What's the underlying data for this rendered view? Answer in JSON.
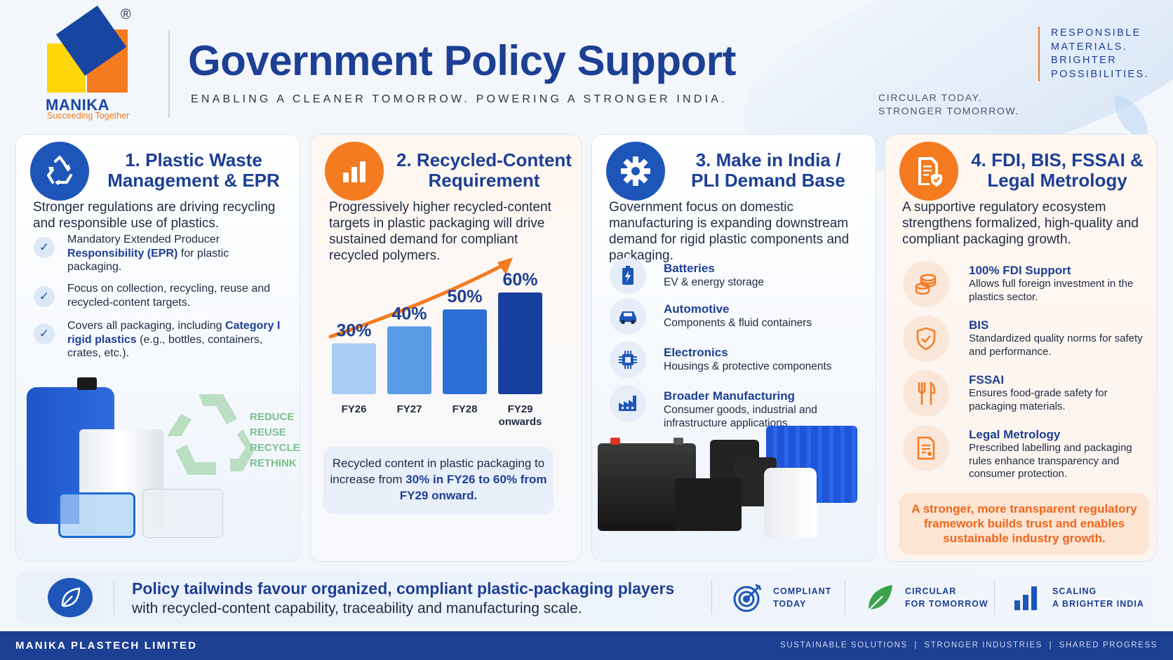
{
  "brand": {
    "name": "MANIKA",
    "tagline": "Succeeding Together",
    "registered": "®"
  },
  "header": {
    "title": "Government Policy Support",
    "subtitle": "ENABLING A CLEANER TOMORROW. POWERING A STRONGER INDIA.",
    "tagline_lines": [
      "RESPONSIBLE",
      "MATERIALS.",
      "BRIGHTER",
      "POSSIBILITIES."
    ],
    "sub_tagline_lines": [
      "CIRCULAR TODAY.",
      "STRONGER TOMORROW."
    ]
  },
  "card1": {
    "icon": "recycle-icon",
    "title_lines": [
      "1. Plastic Waste",
      "Management & EPR"
    ],
    "description": "Stronger regulations are driving recycling and responsible use of plastics.",
    "bullets": [
      {
        "pre": "Mandatory Extended Producer ",
        "bold": "Responsibility (EPR)",
        "post": " for plastic packaging."
      },
      {
        "pre": "Focus on collection, recycling, reuse and recycled-content targets.",
        "bold": "",
        "post": ""
      },
      {
        "pre": "Covers all packaging, including ",
        "bold": "Category I rigid plastics",
        "post": " (e.g., bottles, containers, crates, etc.)."
      }
    ],
    "recycle_words": [
      "REDUCE",
      "REUSE",
      "RECYCLE",
      "RETHINK"
    ]
  },
  "card2": {
    "icon": "bar-chart-icon",
    "title_lines": [
      "2. Recycled-Content",
      "Requirement"
    ],
    "description": "Progressively higher recycled-content targets in plastic packaging will drive sustained demand for compliant recycled polymers.",
    "callout": {
      "pre": "Recycled content in plastic packaging to increase from ",
      "bold": "30% in FY26 to 60% from FY29 onward."
    }
  },
  "chart_data": {
    "type": "bar",
    "categories": [
      "FY26",
      "FY27",
      "FY28",
      "FY29 onwards"
    ],
    "values": [
      30,
      40,
      50,
      60
    ],
    "value_labels": [
      "30%",
      "40%",
      "50%",
      "60%"
    ],
    "ylim": [
      0,
      60
    ],
    "colors": [
      "#a9cdf3",
      "#5a9be6",
      "#2c6fd6",
      "#173f9e"
    ],
    "trend_arrow_color": "#f47b20"
  },
  "card3": {
    "icon": "gear-icon",
    "title_lines": [
      "3. Make in India /",
      "PLI Demand Base"
    ],
    "description": "Government focus on domestic manufacturing is expanding downstream demand for rigid plastic components and packaging.",
    "segments": [
      {
        "icon": "battery-icon",
        "title": "Batteries",
        "desc": "EV & energy storage"
      },
      {
        "icon": "car-icon",
        "title": "Automotive",
        "desc": "Components & fluid containers"
      },
      {
        "icon": "chip-icon",
        "title": "Electronics",
        "desc": "Housings & protective components"
      },
      {
        "icon": "factory-icon",
        "title": "Broader Manufacturing",
        "desc": "Consumer goods, industrial and infrastructure applications"
      }
    ]
  },
  "card4": {
    "icon": "document-shield-icon",
    "title_lines": [
      "4. FDI, BIS, FSSAI &",
      "Legal Metrology"
    ],
    "description": "A supportive regulatory ecosystem strengthens formalized, high-quality and compliant packaging growth.",
    "items": [
      {
        "icon": "coins-icon",
        "title": "100% FDI Support",
        "desc": "Allows full foreign investment in the plastics sector."
      },
      {
        "icon": "shield-check-icon",
        "title": "BIS",
        "desc": "Standardized quality norms for safety and performance."
      },
      {
        "icon": "fork-knife-icon",
        "title": "FSSAI",
        "desc": "Ensures food-grade safety for packaging materials."
      },
      {
        "icon": "label-document-icon",
        "title": "Legal Metrology",
        "desc": "Prescribed labelling and packaging rules enhance transparency and consumer protection."
      }
    ],
    "callout": "A stronger, more transparent regulatory framework builds trust and enables sustainable industry growth."
  },
  "banner": {
    "icon": "leaf-icon",
    "title": "Policy tailwinds favour organized, compliant plastic-packaging players",
    "subtitle": "with recycled-content capability, traceability and manufacturing scale.",
    "items": [
      {
        "icon": "target-icon",
        "line1": "COMPLIANT",
        "line2": "TODAY"
      },
      {
        "icon": "leaf-icon",
        "line1": "CIRCULAR",
        "line2": "FOR TOMORROW"
      },
      {
        "icon": "growth-bars-icon",
        "line1": "SCALING",
        "line2": "A BRIGHTER INDIA"
      }
    ]
  },
  "footer": {
    "company": "MANIKA PLASTECH LIMITED",
    "tags": "SUSTAINABLE SOLUTIONS  |  STRONGER INDUSTRIES  |  SHARED PROGRESS"
  },
  "colors": {
    "navy": "#1d3f94",
    "blue": "#1d56b8",
    "orange": "#f47b20",
    "green": "#7cbf8b"
  }
}
